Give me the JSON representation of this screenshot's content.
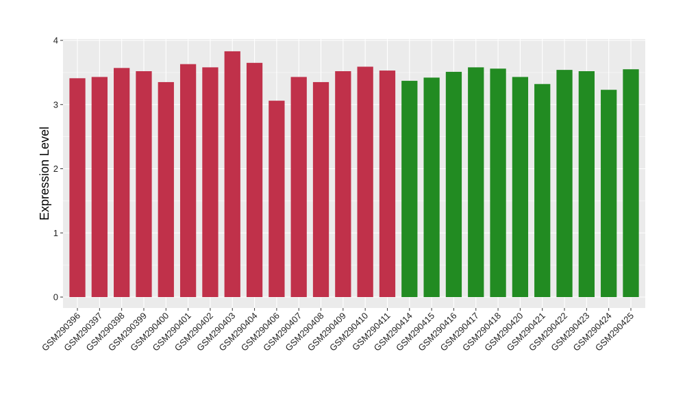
{
  "chart_data": {
    "type": "bar",
    "title": "",
    "xlabel": "",
    "ylabel": "Expression Level",
    "ylim": [
      0,
      4
    ],
    "yticks": [
      0,
      1,
      2,
      3,
      4
    ],
    "grid": true,
    "legend": "none",
    "categories": [
      "GSM290396",
      "GSM290397",
      "GSM290398",
      "GSM290399",
      "GSM290400",
      "GSM290401",
      "GSM290402",
      "GSM290403",
      "GSM290404",
      "GSM290406",
      "GSM290407",
      "GSM290408",
      "GSM290409",
      "GSM290410",
      "GSM290411",
      "GSM290414",
      "GSM290415",
      "GSM290416",
      "GSM290417",
      "GSM290418",
      "GSM290420",
      "GSM290421",
      "GSM290422",
      "GSM290423",
      "GSM290424",
      "GSM290425"
    ],
    "values": [
      3.41,
      3.43,
      3.57,
      3.52,
      3.35,
      3.63,
      3.58,
      3.83,
      3.65,
      3.06,
      3.43,
      3.35,
      3.52,
      3.59,
      3.53,
      3.37,
      3.42,
      3.51,
      3.58,
      3.56,
      3.43,
      3.32,
      3.54,
      3.52,
      3.23,
      3.55
    ],
    "group_sizes": [
      15,
      11
    ],
    "group_colors": [
      "#c0314a",
      "#228b22"
    ],
    "panel_background": "#ebebeb",
    "grid_color": "#ffffff"
  }
}
